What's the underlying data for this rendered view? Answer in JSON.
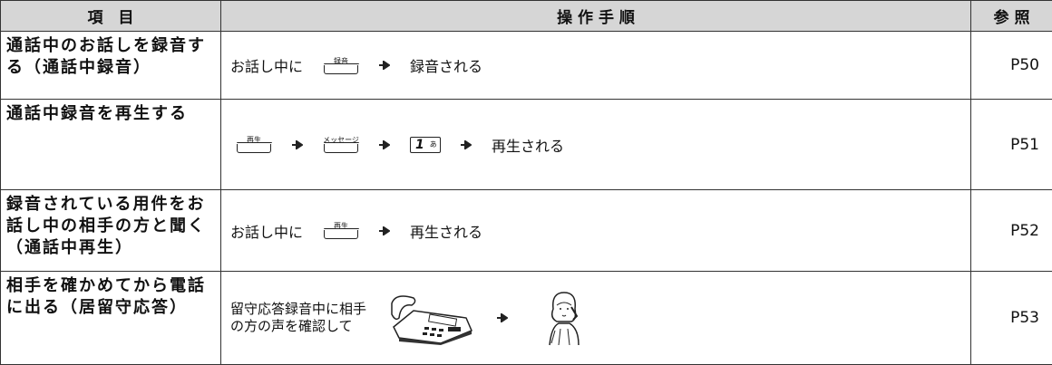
{
  "header": [
    "項　目",
    "操 作 手 順",
    "参 照"
  ],
  "rows": [
    {
      "item": "通話中のお話しを録音する（通話中録音）",
      "steps": [
        "お話し中に",
        "録音",
        "録音される"
      ],
      "ref": "P50"
    },
    {
      "item": "通話中録音を再生する",
      "steps": [
        "再生",
        "メッセージ",
        "1",
        "あ",
        "再生される"
      ],
      "ref": "P51"
    },
    {
      "item": "録音されている用件をお話し中の相手の方と聞く（通話中再生）",
      "steps": [
        "お話し中に",
        "再生",
        "再生される"
      ],
      "ref": "P52"
    },
    {
      "item": "相手を確かめてから電話に出る（居留守応答）",
      "steps": [
        "留守応答録音中に相手",
        "の方の声を確認して"
      ],
      "ref": "P53"
    }
  ]
}
